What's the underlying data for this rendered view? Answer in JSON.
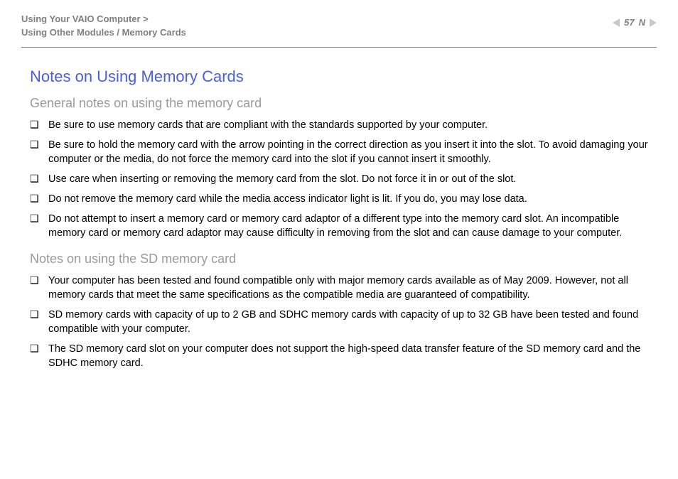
{
  "header": {
    "breadcrumb_line1": "Using Your VAIO Computer >",
    "breadcrumb_line2": "Using Other Modules / Memory Cards",
    "page_number": "57",
    "n_letter": "N"
  },
  "content": {
    "title": "Notes on Using Memory Cards",
    "section1": {
      "heading": "General notes on using the memory card",
      "items": [
        "Be sure to use memory cards that are compliant with the standards supported by your computer.",
        "Be sure to hold the memory card with the arrow pointing in the correct direction as you insert it into the slot. To avoid damaging your computer or the media, do not force the memory card into the slot if you cannot insert it smoothly.",
        "Use care when inserting or removing the memory card from the slot. Do not force it in or out of the slot.",
        "Do not remove the memory card while the media access indicator light is lit. If you do, you may lose data.",
        "Do not attempt to insert a memory card or memory card adaptor of a different type into the memory card slot. An incompatible memory card or memory card adaptor may cause difficulty in removing from the slot and can cause damage to your computer."
      ]
    },
    "section2": {
      "heading": "Notes on using the SD memory card",
      "items": [
        "Your computer has been tested and found compatible only with major memory cards available as of May 2009. However, not all memory cards that meet the same specifications as the compatible media are guaranteed of compatibility.",
        "SD memory cards with capacity of up to 2 GB and SDHC memory cards with capacity of up to 32 GB have been tested and found compatible with your computer.",
        "The SD memory card slot on your computer does not support the high-speed data transfer feature of the SD memory card and the SDHC memory card."
      ]
    }
  },
  "bullet_glyph": "❑"
}
